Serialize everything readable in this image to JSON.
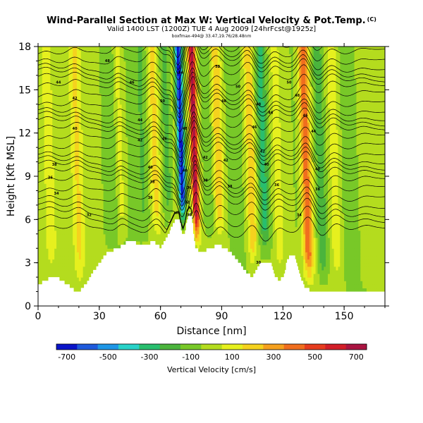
{
  "title": "Wind-Parallel Section at Max W: Vertical Velocity & Pot.Temp.",
  "title_unit": "(C)",
  "subtitle": "Valid 1400 LST (1200Z) TUE 4 Aug 2009 [24hrFcst@1925z]",
  "subtitle2": "boxfmax-494@ 33.47,19.76/28.48nm",
  "colors": {
    "terrain": "#ffffff",
    "axis": "#000000",
    "contour": "#000000"
  },
  "chart_data": {
    "type": "heatmap",
    "xlabel": "Distance [nm]",
    "ylabel": "Height [Kft MSL]",
    "xlim": [
      0,
      170
    ],
    "ylim": [
      0,
      18
    ],
    "xticks": [
      0,
      30,
      60,
      90,
      120,
      150
    ],
    "yticks": [
      0,
      3,
      6,
      9,
      12,
      15,
      18
    ],
    "xtick_labels": [
      "0",
      "30",
      "60",
      "90",
      "120",
      "150"
    ],
    "ytick_labels": [
      "0",
      "3",
      "6",
      "9",
      "12",
      "15",
      "18"
    ],
    "colorbar": {
      "label": "Vertical Velocity [cm/s]",
      "levels": [
        -700,
        -600,
        -500,
        -400,
        -300,
        -200,
        -100,
        0,
        100,
        200,
        300,
        400,
        500,
        600,
        700,
        800
      ],
      "tick_values": [
        -700,
        -500,
        -300,
        -100,
        100,
        300,
        500,
        700
      ],
      "tick_labels": [
        "-700",
        "-500",
        "-300",
        "-100",
        "100",
        "300",
        "500",
        "700"
      ],
      "colors": [
        "#0a14c8",
        "#1e5adc",
        "#1e96e6",
        "#28d2c8",
        "#28be6e",
        "#4bb43c",
        "#78c828",
        "#b4dc1e",
        "#e6f01e",
        "#f5d21e",
        "#f5a01e",
        "#f06e1e",
        "#e63c1e",
        "#d21e28",
        "#aa1441"
      ]
    },
    "terrain_profile": {
      "x_nm": [
        0,
        5,
        10,
        15,
        18,
        20,
        23,
        27,
        30,
        33,
        37,
        40,
        43,
        46,
        50,
        53,
        56,
        60,
        63,
        65,
        67,
        69,
        70,
        71,
        72,
        73,
        74,
        75,
        76,
        77,
        78,
        80,
        84,
        88,
        92,
        96,
        100,
        103,
        105,
        107,
        109,
        112,
        114,
        116,
        118,
        120,
        122,
        124,
        126,
        128,
        130,
        133,
        136,
        140,
        145,
        150,
        155,
        160,
        165,
        170
      ],
      "height_kft": [
        1.5,
        1.9,
        1.9,
        1.4,
        1.0,
        1.0,
        1.5,
        2.4,
        3.0,
        3.6,
        3.9,
        4.1,
        4.4,
        4.5,
        4.2,
        4.2,
        4.5,
        4.0,
        4.8,
        5.4,
        6.0,
        6.0,
        5.3,
        4.9,
        5.3,
        6.1,
        6.4,
        6.3,
        5.0,
        4.0,
        3.9,
        3.7,
        4.0,
        4.2,
        4.0,
        3.4,
        2.7,
        2.2,
        2.0,
        2.5,
        3.0,
        3.1,
        2.9,
        2.0,
        1.8,
        2.0,
        3.2,
        3.6,
        3.3,
        2.3,
        1.4,
        1.1,
        1.0,
        1.0,
        1.1,
        1.0,
        1.1,
        1.1,
        1.0,
        1.0
      ]
    },
    "w_features": [
      {
        "x_nm": 0,
        "amp_cm_s": 0,
        "width_nm": 3,
        "height_factor": 0.2
      },
      {
        "x_nm": 6,
        "amp_cm_s": 150,
        "width_nm": 2.5,
        "height_factor": 0.6
      },
      {
        "x_nm": 20,
        "amp_cm_s": 200,
        "width_nm": 2.5,
        "height_factor": 0.7
      },
      {
        "x_nm": 36,
        "amp_cm_s": -120,
        "width_nm": 3,
        "height_factor": 0.5
      },
      {
        "x_nm": 41,
        "amp_cm_s": 160,
        "width_nm": 2,
        "height_factor": 0.7
      },
      {
        "x_nm": 52,
        "amp_cm_s": -150,
        "width_nm": 3,
        "height_factor": 0.5
      },
      {
        "x_nm": 58,
        "amp_cm_s": 240,
        "width_nm": 2.5,
        "height_factor": 0.8
      },
      {
        "x_nm": 64,
        "amp_cm_s": -220,
        "width_nm": 2.5,
        "height_factor": 0.6
      },
      {
        "x_nm": 71,
        "amp_cm_s": -720,
        "width_nm": 1.8,
        "height_factor": 1.0
      },
      {
        "x_nm": 77.5,
        "amp_cm_s": 720,
        "width_nm": 1.8,
        "height_factor": 1.0
      },
      {
        "x_nm": 84,
        "amp_cm_s": -140,
        "width_nm": 3,
        "height_factor": 0.6
      },
      {
        "x_nm": 89,
        "amp_cm_s": 300,
        "width_nm": 2.5,
        "height_factor": 0.8
      },
      {
        "x_nm": 97,
        "amp_cm_s": -120,
        "width_nm": 3,
        "height_factor": 0.5
      },
      {
        "x_nm": 105,
        "amp_cm_s": 320,
        "width_nm": 2.5,
        "height_factor": 0.8
      },
      {
        "x_nm": 111,
        "amp_cm_s": -300,
        "width_nm": 2.5,
        "height_factor": 0.7
      },
      {
        "x_nm": 118,
        "amp_cm_s": 160,
        "width_nm": 2,
        "height_factor": 0.7
      },
      {
        "x_nm": 127,
        "amp_cm_s": -80,
        "width_nm": 3,
        "height_factor": 0.5
      },
      {
        "x_nm": 132,
        "amp_cm_s": 460,
        "width_nm": 2.5,
        "height_factor": 0.8
      },
      {
        "x_nm": 139,
        "amp_cm_s": -260,
        "width_nm": 2.5,
        "height_factor": 0.7
      },
      {
        "x_nm": 146,
        "amp_cm_s": 180,
        "width_nm": 2.5,
        "height_factor": 0.6
      },
      {
        "x_nm": 154,
        "amp_cm_s": -100,
        "width_nm": 4,
        "height_factor": 0.5
      },
      {
        "x_nm": 160,
        "amp_cm_s": 120,
        "width_nm": 3,
        "height_factor": 0.5
      }
    ],
    "theta_contours": {
      "values_c": [
        25,
        26,
        27,
        28,
        29,
        30,
        31,
        32,
        33,
        34,
        35,
        36,
        37,
        38,
        39,
        40,
        41,
        42,
        43,
        44,
        45,
        46,
        47,
        48,
        49,
        50,
        51,
        52
      ],
      "base_height_kft": [
        5.2,
        5.8,
        6.4,
        7.0,
        7.6,
        8.1,
        8.6,
        9.1,
        9.6,
        10.1,
        10.6,
        11.1,
        11.6,
        12.1,
        12.6,
        13.1,
        13.6,
        14.1,
        14.6,
        15.1,
        15.6,
        16.1,
        16.6,
        17.1,
        17.6,
        18.1,
        18.6,
        19.1
      ],
      "label_points": [
        {
          "x_nm": 10,
          "height_kft": 15.5,
          "text": "44"
        },
        {
          "x_nm": 18,
          "height_kft": 14.4,
          "text": "42"
        },
        {
          "x_nm": 18,
          "height_kft": 12.3,
          "text": "40"
        },
        {
          "x_nm": 8,
          "height_kft": 9.8,
          "text": "38"
        },
        {
          "x_nm": 6,
          "height_kft": 8.9,
          "text": "36"
        },
        {
          "x_nm": 9,
          "height_kft": 7.8,
          "text": "34"
        },
        {
          "x_nm": 25,
          "height_kft": 6.3,
          "text": "32"
        },
        {
          "x_nm": 34,
          "height_kft": 17.0,
          "text": "48"
        },
        {
          "x_nm": 46,
          "height_kft": 15.5,
          "text": "46"
        },
        {
          "x_nm": 50,
          "height_kft": 12.9,
          "text": "44"
        },
        {
          "x_nm": 50,
          "height_kft": 11.5,
          "text": "42"
        },
        {
          "x_nm": 55,
          "height_kft": 9.6,
          "text": "40"
        },
        {
          "x_nm": 56,
          "height_kft": 8.6,
          "text": "38"
        },
        {
          "x_nm": 55,
          "height_kft": 7.5,
          "text": "36"
        },
        {
          "x_nm": 61,
          "height_kft": 14.2,
          "text": "50"
        },
        {
          "x_nm": 62,
          "height_kft": 11.6,
          "text": "46"
        },
        {
          "x_nm": 70,
          "height_kft": 16.2,
          "text": "54"
        },
        {
          "x_nm": 72,
          "height_kft": 12.3,
          "text": "48"
        },
        {
          "x_nm": 72,
          "height_kft": 9.4,
          "text": "40"
        },
        {
          "x_nm": 74,
          "height_kft": 8.2,
          "text": "36"
        },
        {
          "x_nm": 73,
          "height_kft": 7.2,
          "text": "32"
        },
        {
          "x_nm": 74,
          "height_kft": 6.3,
          "text": "30"
        },
        {
          "x_nm": 82,
          "height_kft": 10.3,
          "text": "42"
        },
        {
          "x_nm": 82,
          "height_kft": 8.7,
          "text": "38"
        },
        {
          "x_nm": 88,
          "height_kft": 16.6,
          "text": "52"
        },
        {
          "x_nm": 91,
          "height_kft": 14.2,
          "text": "48"
        },
        {
          "x_nm": 92,
          "height_kft": 10.1,
          "text": "42"
        },
        {
          "x_nm": 94,
          "height_kft": 8.3,
          "text": "38"
        },
        {
          "x_nm": 98,
          "height_kft": 15.2,
          "text": "50"
        },
        {
          "x_nm": 106,
          "height_kft": 12.4,
          "text": "46"
        },
        {
          "x_nm": 108,
          "height_kft": 14.0,
          "text": "48"
        },
        {
          "x_nm": 110,
          "height_kft": 10.7,
          "text": "42"
        },
        {
          "x_nm": 112,
          "height_kft": 9.8,
          "text": "40"
        },
        {
          "x_nm": 114,
          "height_kft": 13.4,
          "text": "46"
        },
        {
          "x_nm": 117,
          "height_kft": 8.4,
          "text": "36"
        },
        {
          "x_nm": 108,
          "height_kft": 3.0,
          "text": "30"
        },
        {
          "x_nm": 123,
          "height_kft": 15.5,
          "text": "50"
        },
        {
          "x_nm": 127,
          "height_kft": 14.6,
          "text": "48"
        },
        {
          "x_nm": 131,
          "height_kft": 13.2,
          "text": "46"
        },
        {
          "x_nm": 135,
          "height_kft": 12.1,
          "text": "44"
        },
        {
          "x_nm": 137,
          "height_kft": 9.5,
          "text": "40"
        },
        {
          "x_nm": 137,
          "height_kft": 8.1,
          "text": "38"
        },
        {
          "x_nm": 128,
          "height_kft": 6.3,
          "text": "34"
        }
      ]
    }
  }
}
